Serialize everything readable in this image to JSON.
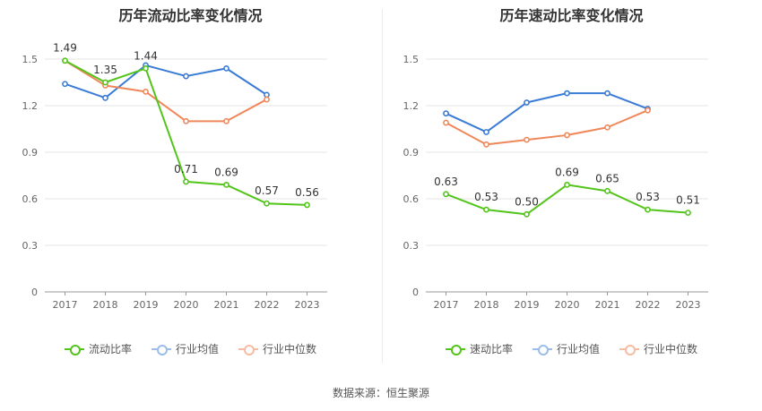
{
  "chart_data": [
    {
      "type": "line",
      "title": "历年流动比率变化情况",
      "categories": [
        "2017",
        "2018",
        "2019",
        "2020",
        "2021",
        "2022",
        "2023"
      ],
      "yticks": [
        "0",
        "0.3",
        "0.6",
        "0.9",
        "1.2",
        "1.5"
      ],
      "ylim": [
        0,
        1.65
      ],
      "grid": true,
      "legend_position": "bottom",
      "series": [
        {
          "name": "流动比率",
          "color": "#52c41a",
          "values": [
            1.49,
            1.35,
            1.44,
            0.71,
            0.69,
            0.57,
            0.56
          ],
          "labels": [
            "1.49",
            "1.35",
            "1.44",
            "0.71",
            "0.69",
            "0.57",
            "0.56"
          ]
        },
        {
          "name": "行业均值",
          "color": "#3a7bd5",
          "values": [
            1.34,
            1.25,
            1.46,
            1.39,
            1.44,
            1.27,
            null
          ]
        },
        {
          "name": "行业中位数",
          "color": "#f0875a",
          "values": [
            1.49,
            1.33,
            1.29,
            1.1,
            1.1,
            1.24,
            null
          ]
        }
      ]
    },
    {
      "type": "line",
      "title": "历年速动比率变化情况",
      "categories": [
        "2017",
        "2018",
        "2019",
        "2020",
        "2021",
        "2022",
        "2023"
      ],
      "yticks": [
        "0",
        "0.3",
        "0.6",
        "0.9",
        "1.2",
        "1.5"
      ],
      "ylim": [
        0,
        1.65
      ],
      "grid": true,
      "legend_position": "bottom",
      "series": [
        {
          "name": "速动比率",
          "color": "#52c41a",
          "values": [
            0.63,
            0.53,
            0.5,
            0.69,
            0.65,
            0.53,
            0.51
          ],
          "labels": [
            "0.63",
            "0.53",
            "0.50",
            "0.69",
            "0.65",
            "0.53",
            "0.51"
          ]
        },
        {
          "name": "行业均值",
          "color": "#3a7bd5",
          "values": [
            1.15,
            1.03,
            1.22,
            1.28,
            1.28,
            1.18,
            null
          ]
        },
        {
          "name": "行业中位数",
          "color": "#f0875a",
          "values": [
            1.09,
            0.95,
            0.98,
            1.01,
            1.06,
            1.17,
            null
          ]
        }
      ]
    }
  ],
  "footer": {
    "source": "数据来源：恒生聚源"
  }
}
